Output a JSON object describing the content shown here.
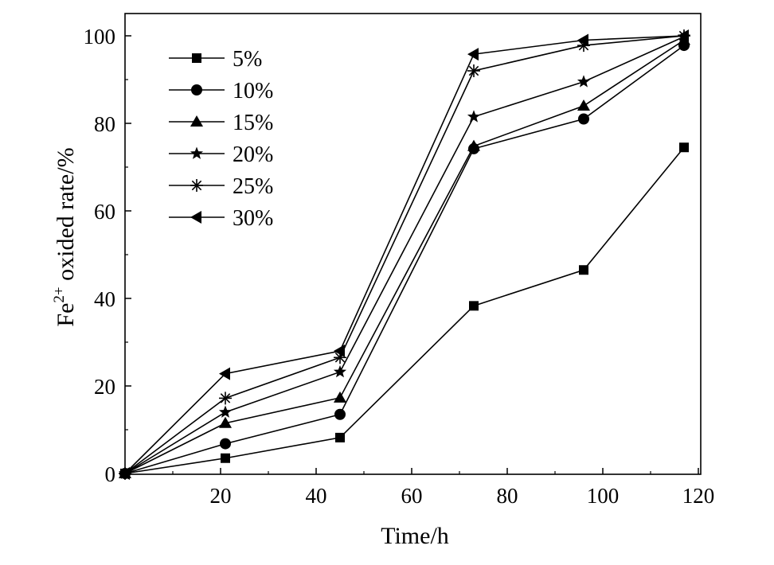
{
  "chart_data": {
    "type": "line",
    "xlabel": "Time/h",
    "ylabel_main": "Fe",
    "ylabel_sup": "2+",
    "ylabel_rest": " oxided rate/%",
    "xlim": [
      0,
      120
    ],
    "ylim": [
      0,
      100
    ],
    "xticks": [
      20,
      40,
      60,
      80,
      100,
      120
    ],
    "yticks": [
      0,
      20,
      40,
      60,
      80,
      100
    ],
    "grid": false,
    "legend_position": "top-left",
    "x": [
      0,
      21,
      45,
      73,
      96,
      117
    ],
    "series": [
      {
        "name": "5%",
        "marker": "square",
        "values": [
          0,
          3.5,
          8.2,
          38.3,
          46.5,
          74.5
        ]
      },
      {
        "name": "10%",
        "marker": "circle",
        "values": [
          0,
          6.8,
          13.5,
          74.2,
          81.0,
          97.8
        ]
      },
      {
        "name": "15%",
        "marker": "triangle-up",
        "values": [
          0,
          11.5,
          17.3,
          74.8,
          84.0,
          99.0
        ]
      },
      {
        "name": "20%",
        "marker": "star",
        "values": [
          0,
          14.0,
          23.2,
          81.5,
          89.5,
          99.8
        ]
      },
      {
        "name": "25%",
        "marker": "asterisk",
        "values": [
          0,
          17.2,
          26.5,
          92.0,
          97.8,
          100
        ]
      },
      {
        "name": "30%",
        "marker": "triangle-left",
        "values": [
          0,
          22.8,
          28.0,
          95.8,
          99.0,
          100
        ]
      }
    ]
  }
}
